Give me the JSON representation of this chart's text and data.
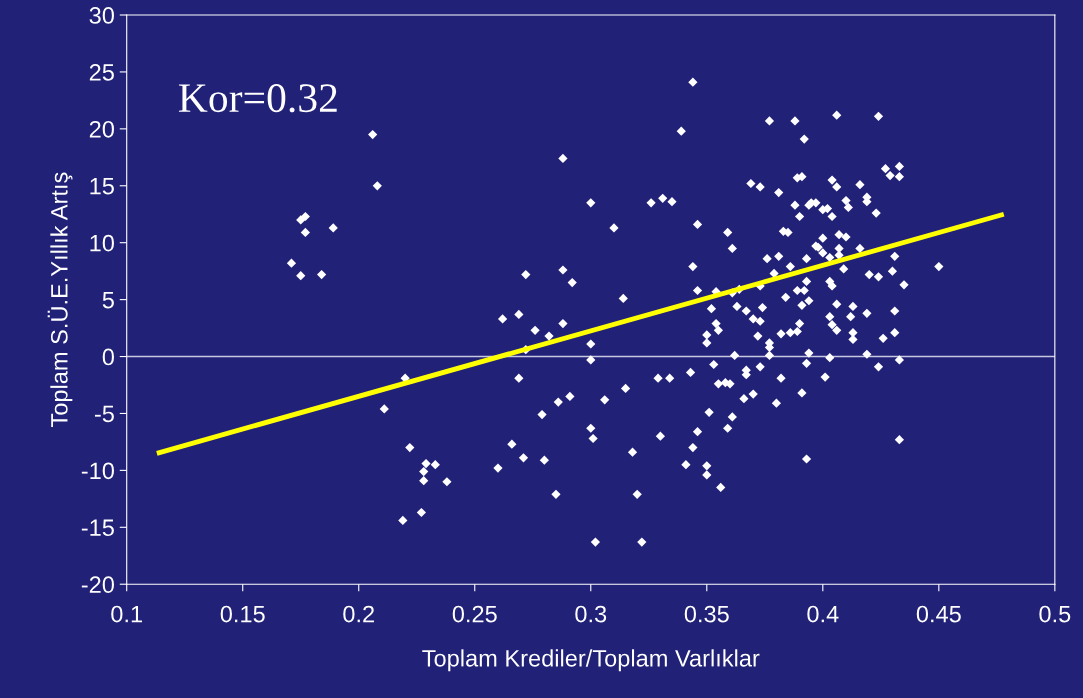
{
  "chart_data": {
    "type": "scatter",
    "xlabel": "Toplam Krediler/Toplam Varlıklar",
    "ylabel": "Toplam S.Ü.E.Yıllık Artış",
    "annotations": [
      "Kor=0.32"
    ],
    "xlim": [
      0.1,
      0.5
    ],
    "xticks": [
      0.1,
      0.15,
      0.2,
      0.25,
      0.3,
      0.35,
      0.4,
      0.45,
      0.5
    ],
    "ylim": [
      -20,
      30
    ],
    "yticks": [
      -20,
      -15,
      -10,
      -5,
      0,
      5,
      10,
      15,
      20,
      25,
      30
    ],
    "grid": false,
    "legend": false,
    "marker": "diamond",
    "ref_lines": [
      {
        "axis": "y",
        "value": 0,
        "color": "#c8c8e0"
      }
    ],
    "series": [
      {
        "color": "#ffffff",
        "x": [
          0.171,
          0.175,
          0.175,
          0.177,
          0.177,
          0.184,
          0.189,
          0.206,
          0.208,
          0.211,
          0.22,
          0.222,
          0.219,
          0.229,
          0.228,
          0.228,
          0.233,
          0.238,
          0.227,
          0.26,
          0.262,
          0.266,
          0.269,
          0.269,
          0.272,
          0.271,
          0.272,
          0.276,
          0.279,
          0.28,
          0.282,
          0.285,
          0.286,
          0.288,
          0.288,
          0.288,
          0.291,
          0.292,
          0.3,
          0.3,
          0.301,
          0.3,
          0.3,
          0.302,
          0.306,
          0.31,
          0.314,
          0.315,
          0.318,
          0.32,
          0.322,
          0.326,
          0.33,
          0.331,
          0.335,
          0.329,
          0.334,
          0.339,
          0.344,
          0.346,
          0.344,
          0.346,
          0.359,
          0.361,
          0.352,
          0.354,
          0.354,
          0.35,
          0.355,
          0.35,
          0.353,
          0.343,
          0.355,
          0.358,
          0.36,
          0.351,
          0.361,
          0.359,
          0.346,
          0.344,
          0.341,
          0.35,
          0.35,
          0.356,
          0.361,
          0.363,
          0.367,
          0.364,
          0.362,
          0.367,
          0.367,
          0.366,
          0.37,
          0.37,
          0.373,
          0.372,
          0.374,
          0.373,
          0.373,
          0.369,
          0.373,
          0.377,
          0.381,
          0.377,
          0.377,
          0.377,
          0.376,
          0.381,
          0.379,
          0.382,
          0.38,
          0.382,
          0.386,
          0.389,
          0.39,
          0.384,
          0.383,
          0.385,
          0.386,
          0.388,
          0.39,
          0.388,
          0.392,
          0.389,
          0.391,
          0.393,
          0.389,
          0.392,
          0.391,
          0.394,
          0.391,
          0.393,
          0.393,
          0.397,
          0.394,
          0.393,
          0.395,
          0.406,
          0.424,
          0.404,
          0.406,
          0.416,
          0.427,
          0.429,
          0.433,
          0.433,
          0.397,
          0.394,
          0.4,
          0.402,
          0.404,
          0.41,
          0.411,
          0.419,
          0.419,
          0.423,
          0.4,
          0.407,
          0.41,
          0.398,
          0.4,
          0.407,
          0.416,
          0.403,
          0.407,
          0.409,
          0.431,
          0.43,
          0.42,
          0.424,
          0.435,
          0.45,
          0.403,
          0.404,
          0.406,
          0.413,
          0.412,
          0.419,
          0.431,
          0.403,
          0.404,
          0.406,
          0.413,
          0.413,
          0.426,
          0.431,
          0.403,
          0.419,
          0.433,
          0.424,
          0.401,
          0.433
        ],
        "values": [
          8.2,
          7.1,
          12.0,
          12.3,
          10.9,
          7.2,
          11.3,
          19.5,
          15.0,
          -4.6,
          -1.9,
          -8.0,
          -14.4,
          -9.4,
          -10.1,
          -10.9,
          -9.5,
          -11.0,
          -13.7,
          -9.8,
          3.3,
          -7.7,
          3.7,
          -1.9,
          7.2,
          -8.9,
          0.6,
          2.3,
          -5.1,
          -9.1,
          1.8,
          -12.1,
          -4.0,
          17.4,
          7.6,
          2.9,
          -3.5,
          6.5,
          13.5,
          -6.3,
          -7.2,
          1.1,
          -0.3,
          -16.3,
          -3.8,
          11.3,
          5.1,
          -2.8,
          -8.4,
          -12.1,
          -16.3,
          13.5,
          -7.0,
          13.9,
          13.6,
          -1.9,
          -1.9,
          19.8,
          24.1,
          11.6,
          7.9,
          5.8,
          10.9,
          9.5,
          4.2,
          5.7,
          2.9,
          1.9,
          2.3,
          1.2,
          -0.7,
          -1.4,
          -2.4,
          -2.3,
          -2.4,
          -4.9,
          -5.3,
          -6.3,
          -6.6,
          -8.0,
          -9.5,
          -9.6,
          -10.4,
          -11.5,
          5.6,
          4.4,
          4.0,
          5.9,
          0.1,
          -1.2,
          -1.6,
          -3.7,
          -3.3,
          3.3,
          3.1,
          1.8,
          4.3,
          6.2,
          -0.9,
          15.2,
          14.9,
          20.7,
          14.4,
          1.2,
          0.8,
          0.1,
          8.6,
          8.8,
          7.3,
          -1.9,
          -4.1,
          2.0,
          2.1,
          2.2,
          2.9,
          5.2,
          11.0,
          10.9,
          7.9,
          13.3,
          12.3,
          20.7,
          19.1,
          15.7,
          15.8,
          6.6,
          5.8,
          5.8,
          4.5,
          4.9,
          -3.2,
          -9.0,
          8.6,
          9.7,
          0.3,
          -0.6,
          13.5,
          21.2,
          21.1,
          15.5,
          14.9,
          15.1,
          16.5,
          15.9,
          16.7,
          15.8,
          13.5,
          13.3,
          12.9,
          13.0,
          12.3,
          13.7,
          13.1,
          14.0,
          13.6,
          12.6,
          10.4,
          10.7,
          10.5,
          9.6,
          9.1,
          9.5,
          9.5,
          8.7,
          8.9,
          7.7,
          8.8,
          7.5,
          7.2,
          7.0,
          6.3,
          7.9,
          6.6,
          6.2,
          4.6,
          4.4,
          3.5,
          3.8,
          4.0,
          3.5,
          2.8,
          2.3,
          2.1,
          1.5,
          1.6,
          2.1,
          -0.1,
          0.2,
          -0.3,
          -0.9,
          -1.8,
          -7.3
        ]
      },
      {
        "type": "line",
        "color": "#ffff00",
        "marker": "none",
        "x": [
          0.113,
          0.478
        ],
        "values": [
          -8.5,
          12.5
        ]
      }
    ]
  }
}
